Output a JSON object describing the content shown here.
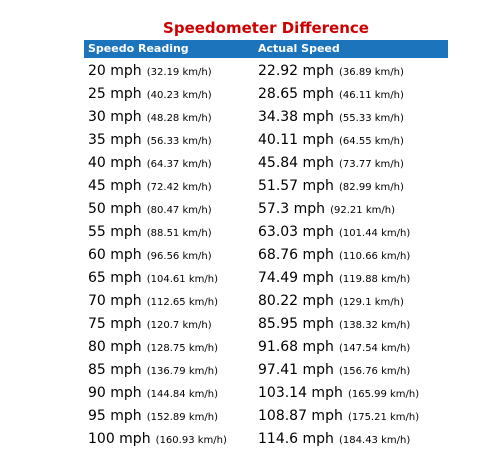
{
  "title": "Speedometer Difference",
  "header_color": "#1c75bc",
  "title_color": "#cc0000",
  "columns": [
    "Speedo Reading",
    "Actual Speed"
  ],
  "rows": [
    {
      "speedo_mph": "20 mph",
      "speedo_kmh": "(32.19 km/h)",
      "actual_mph": "22.92 mph",
      "actual_kmh": "(36.89 km/h)"
    },
    {
      "speedo_mph": "25 mph",
      "speedo_kmh": "(40.23 km/h)",
      "actual_mph": "28.65 mph",
      "actual_kmh": "(46.11 km/h)"
    },
    {
      "speedo_mph": "30 mph",
      "speedo_kmh": "(48.28 km/h)",
      "actual_mph": "34.38 mph",
      "actual_kmh": "(55.33 km/h)"
    },
    {
      "speedo_mph": "35 mph",
      "speedo_kmh": "(56.33 km/h)",
      "actual_mph": "40.11 mph",
      "actual_kmh": "(64.55 km/h)"
    },
    {
      "speedo_mph": "40 mph",
      "speedo_kmh": "(64.37 km/h)",
      "actual_mph": "45.84 mph",
      "actual_kmh": "(73.77 km/h)"
    },
    {
      "speedo_mph": "45 mph",
      "speedo_kmh": "(72.42 km/h)",
      "actual_mph": "51.57 mph",
      "actual_kmh": "(82.99 km/h)"
    },
    {
      "speedo_mph": "50 mph",
      "speedo_kmh": "(80.47 km/h)",
      "actual_mph": "57.3 mph",
      "actual_kmh": "(92.21 km/h)"
    },
    {
      "speedo_mph": "55 mph",
      "speedo_kmh": "(88.51 km/h)",
      "actual_mph": "63.03 mph",
      "actual_kmh": "(101.44 km/h)"
    },
    {
      "speedo_mph": "60 mph",
      "speedo_kmh": "(96.56 km/h)",
      "actual_mph": "68.76 mph",
      "actual_kmh": "(110.66 km/h)"
    },
    {
      "speedo_mph": "65 mph",
      "speedo_kmh": "(104.61 km/h)",
      "actual_mph": "74.49 mph",
      "actual_kmh": "(119.88 km/h)"
    },
    {
      "speedo_mph": "70 mph",
      "speedo_kmh": "(112.65 km/h)",
      "actual_mph": "80.22 mph",
      "actual_kmh": "(129.1 km/h)"
    },
    {
      "speedo_mph": "75 mph",
      "speedo_kmh": "(120.7 km/h)",
      "actual_mph": "85.95 mph",
      "actual_kmh": "(138.32 km/h)"
    },
    {
      "speedo_mph": "80 mph",
      "speedo_kmh": "(128.75 km/h)",
      "actual_mph": "91.68 mph",
      "actual_kmh": "(147.54 km/h)"
    },
    {
      "speedo_mph": "85 mph",
      "speedo_kmh": "(136.79 km/h)",
      "actual_mph": "97.41 mph",
      "actual_kmh": "(156.76 km/h)"
    },
    {
      "speedo_mph": "90 mph",
      "speedo_kmh": "(144.84 km/h)",
      "actual_mph": "103.14 mph",
      "actual_kmh": "(165.99 km/h)"
    },
    {
      "speedo_mph": "95 mph",
      "speedo_kmh": "(152.89 km/h)",
      "actual_mph": "108.87 mph",
      "actual_kmh": "(175.21 km/h)"
    },
    {
      "speedo_mph": "100 mph",
      "speedo_kmh": "(160.93 km/h)",
      "actual_mph": "114.6 mph",
      "actual_kmh": "(184.43 km/h)"
    }
  ]
}
